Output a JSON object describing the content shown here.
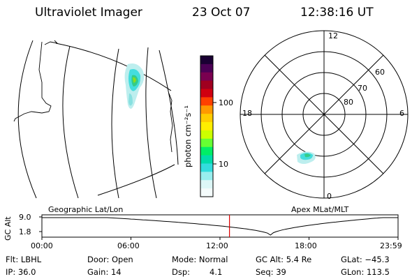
{
  "header": {
    "title": "Ultraviolet Imager",
    "date": "23 Oct 07",
    "time": "12:38:16 UT"
  },
  "geo_panel": {
    "caption": "Geographic Lat/Lon"
  },
  "colorbar": {
    "label": "photon cm⁻²s⁻¹",
    "ticks": [
      "100",
      "10"
    ],
    "colors": [
      "#1a0033",
      "#4b0055",
      "#7a0050",
      "#a00020",
      "#d00010",
      "#ff4000",
      "#ff9900",
      "#ffcc00",
      "#ffee00",
      "#ccff00",
      "#66ff33",
      "#00ee66",
      "#00ddaa",
      "#33dddd",
      "#99eeee",
      "#ddf7f7",
      "#f4fbfb"
    ]
  },
  "polar_panel": {
    "caption": "Apex MLat/MLT",
    "mlt_labels": {
      "top": "12",
      "left": "18",
      "right": "6",
      "bottom": "0"
    },
    "lat_labels": [
      "60",
      "70",
      "80"
    ]
  },
  "altitude_plot": {
    "ylabel": "GC Alt",
    "yticks": [
      "9.0",
      "1.8"
    ],
    "xticks": [
      "00:00",
      "06:00",
      "12:00",
      "18:00",
      "23:59"
    ],
    "current_time_hours": 12.64,
    "marker_color": "#dd0000"
  },
  "info": {
    "filter": "Flt: LBHL",
    "ip": "IP: 36.0",
    "door": "Door: Open",
    "gain": "Gain: 14",
    "mode": "Mode: Normal",
    "dsp_label": "Dsp:",
    "dsp_value": "4.1",
    "gc_alt": "GC Alt: 5.4 Re",
    "seq": "Seq: 39",
    "glat": "GLat: −45.3",
    "glon": "GLon: 113.5"
  }
}
